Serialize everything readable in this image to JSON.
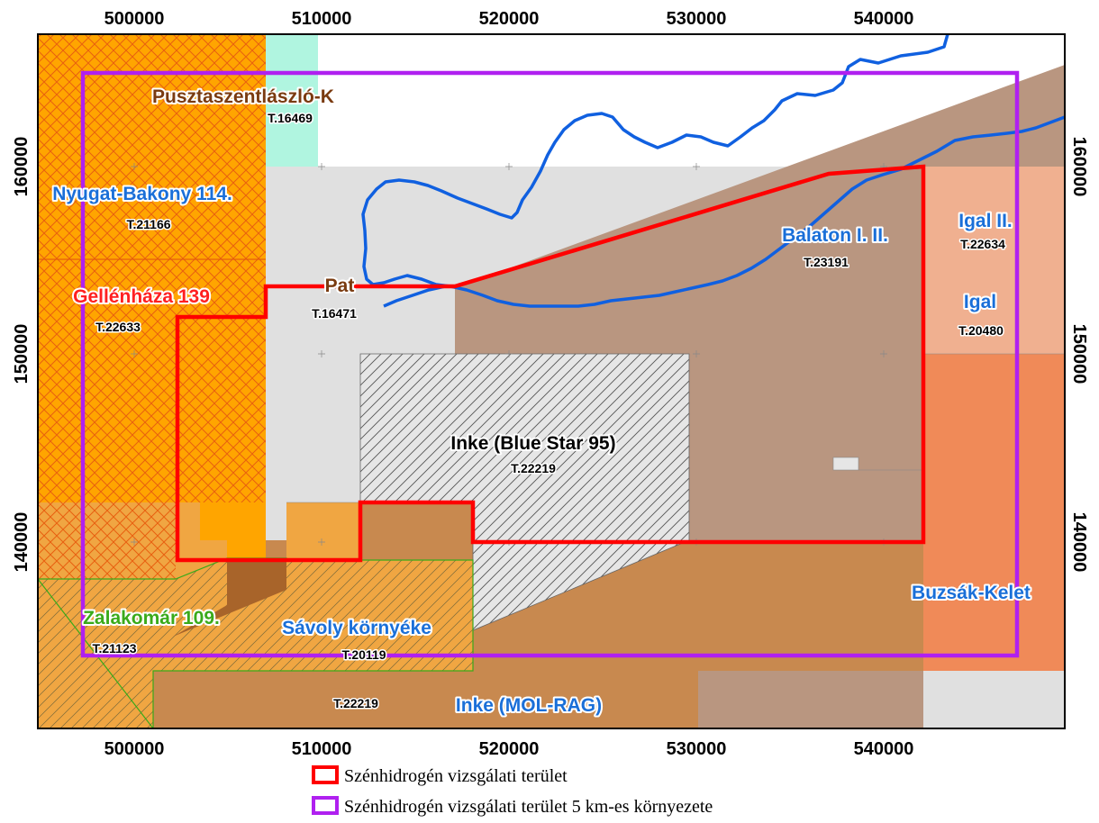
{
  "axes": {
    "x_ticks": [
      "500000",
      "510000",
      "520000",
      "530000",
      "540000"
    ],
    "y_ticks": [
      "160000",
      "150000",
      "140000"
    ]
  },
  "areas": [
    {
      "name": "Pusztaszentlászló-K",
      "code": "T.16469",
      "color": "#7a3b10"
    },
    {
      "name": "Nyugat-Bakony 114.",
      "code": "T.21166",
      "color": "#1a6fd8"
    },
    {
      "name": "Gellénháza 139",
      "code": "T.22633",
      "color": "#ff2020"
    },
    {
      "name": "Pat",
      "code": "T.16471",
      "color": "#7a3b10"
    },
    {
      "name": "Balaton I. II.",
      "code": "T.23191",
      "color": "#1a6fd8"
    },
    {
      "name": "Igal II.",
      "code": "T.22634",
      "color": "#1a6fd8"
    },
    {
      "name": "Igal",
      "code": "T.20480",
      "color": "#1a6fd8"
    },
    {
      "name": "Inke (Blue Star 95)",
      "code": "T.22219",
      "color": "#000000"
    },
    {
      "name": "Buzsák-Kelet",
      "code": "",
      "color": "#1a6fd8"
    },
    {
      "name": "Zalakomár 109.",
      "code": "T.21123",
      "color": "#3aaa1a"
    },
    {
      "name": "Sávoly környéke",
      "code": "T.20119",
      "color": "#1a6fd8"
    },
    {
      "name": "Inke (MOL-RAG)",
      "code": "T.22219",
      "color": "#1a6fd8"
    }
  ],
  "legend": [
    {
      "label": "Szénhidrogén vizsgálati terület",
      "color": "#ff0000"
    },
    {
      "label": "Szénhidrogén vizsgálati terület 5 km-es környezete",
      "color": "#b020f0"
    }
  ],
  "colors": {
    "study_area": "#ff0000",
    "buffer_5km": "#b020f0",
    "lake_shore": "#1060e0",
    "grey_area": "#e0e0e0",
    "brown_area": "#b99680",
    "orange_area": "#ffa500",
    "dark_brown_area": "#c8894f",
    "cyan_area": "#b0f5e0",
    "salmon_area": "#f0b090",
    "coral_area": "#f08a58"
  }
}
